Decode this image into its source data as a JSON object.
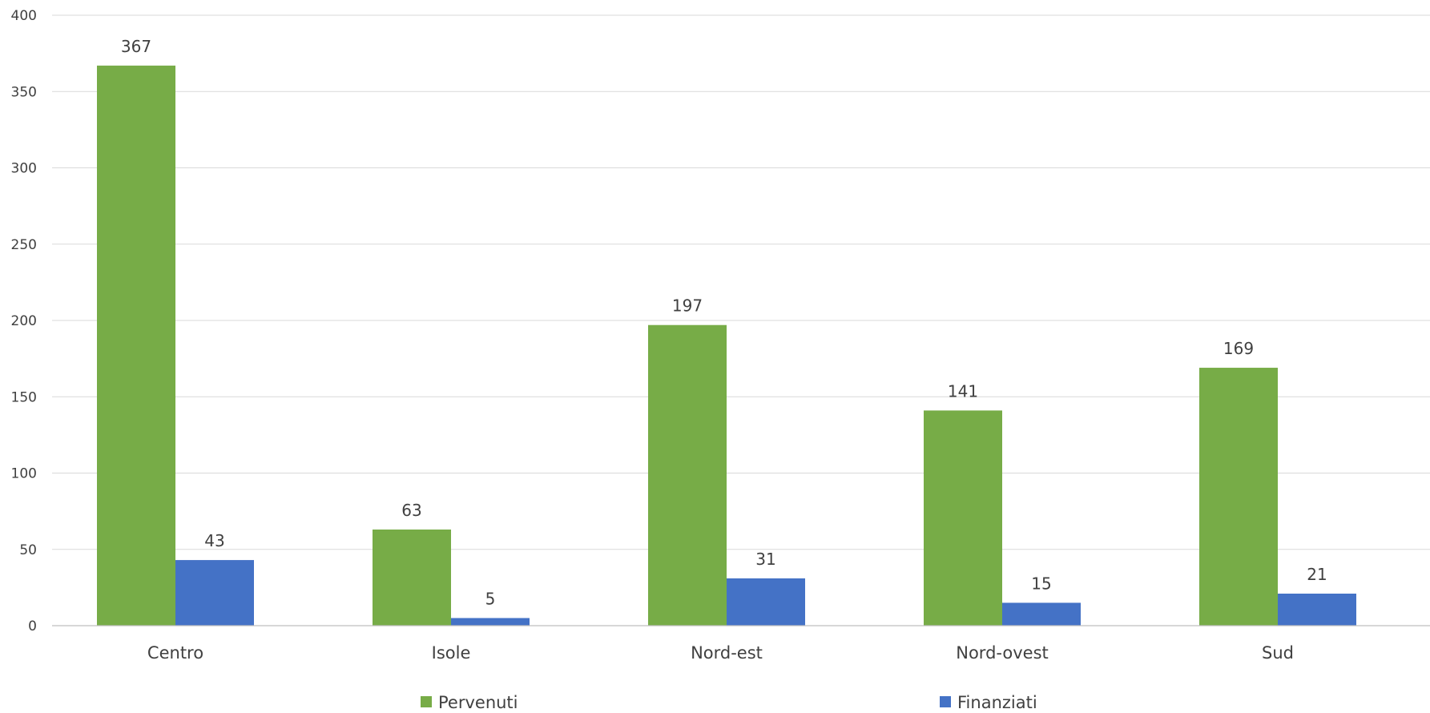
{
  "chart_data": {
    "type": "bar",
    "title": "",
    "xlabel": "",
    "ylabel": "",
    "categories": [
      "Centro",
      "Isole",
      "Nord-est",
      "Nord-ovest",
      "Sud"
    ],
    "series": [
      {
        "name": "Pervenuti",
        "color": "#77ac47",
        "values": [
          367,
          63,
          197,
          141,
          169
        ]
      },
      {
        "name": "Finanziati",
        "color": "#4472c6",
        "values": [
          43,
          5,
          31,
          15,
          21
        ]
      }
    ],
    "ylim": [
      0,
      400
    ],
    "yticks": [
      "0",
      "50",
      "100",
      "150",
      "200",
      "250",
      "300",
      "350",
      "400"
    ],
    "data_labels": true,
    "grid": true,
    "legend_position": "bottom"
  }
}
